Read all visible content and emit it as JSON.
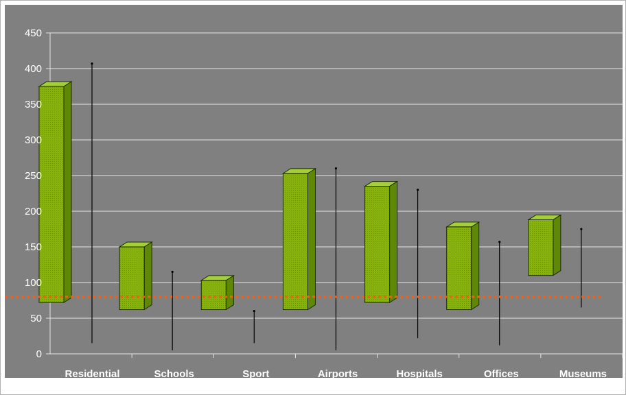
{
  "chart_data": {
    "type": "bar",
    "subtype": "3d-floating-range-bar",
    "title": "",
    "xlabel": "",
    "ylabel": "",
    "ylim": [
      0,
      450
    ],
    "yticks": [
      "0",
      "50",
      "100",
      "150",
      "200",
      "250",
      "300",
      "350",
      "400",
      "450"
    ],
    "grid": true,
    "legend": "none",
    "categories": [
      "Residential",
      "Schools",
      "Sport",
      "Airports",
      "Hospitals",
      "Offices",
      "Museums"
    ],
    "series": [
      {
        "role": "bar-low",
        "values": [
          72,
          62,
          62,
          62,
          72,
          62,
          110
        ]
      },
      {
        "role": "bar-high",
        "values": [
          375,
          150,
          103,
          253,
          235,
          178,
          188
        ]
      },
      {
        "role": "range-low",
        "values": [
          15,
          5,
          15,
          5,
          22,
          12,
          65
        ]
      },
      {
        "role": "range-high",
        "values": [
          407,
          115,
          60,
          260,
          230,
          157,
          175
        ]
      }
    ],
    "reference_line": {
      "value": 80,
      "style": "dotted"
    },
    "colors": {
      "plot_background": "#808080",
      "gridline": "#e6e6e6",
      "bar_front": "#87b20c",
      "bar_top": "#a4cf3a",
      "bar_side": "#5f8806",
      "bar_edge": "#1a2a00",
      "whisker": "#000000",
      "reference_line": "#ff5a14",
      "text": "#ffffff"
    }
  }
}
